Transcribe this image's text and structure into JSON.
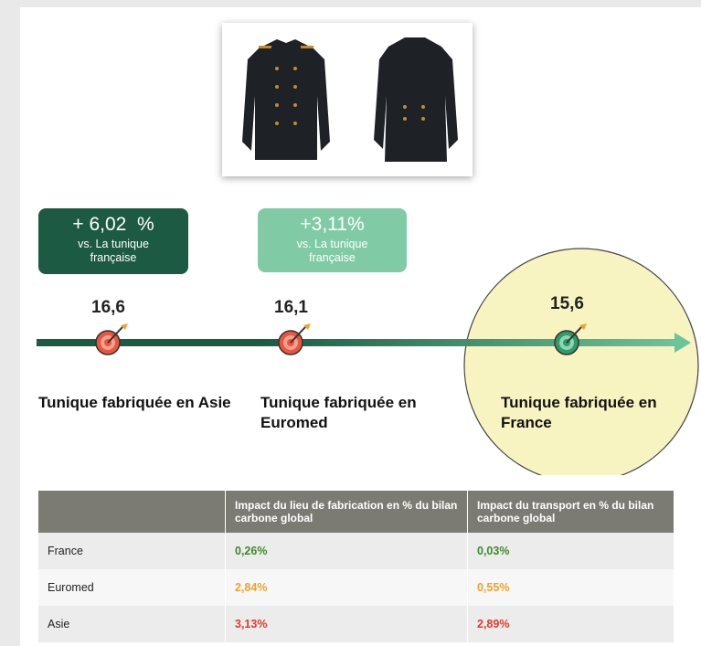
{
  "badges": [
    {
      "value": "+ 6,02  %",
      "text": "vs. La tunique française"
    },
    {
      "value": "+3,11%",
      "text": "vs. La tunique française"
    }
  ],
  "timeline": [
    {
      "value": "16,6",
      "label": "Tunique fabriquée en Asie"
    },
    {
      "value": "16,1",
      "label": "Tunique fabriquée en Euromed"
    },
    {
      "value": "15,6",
      "label": "Tunique fabriquée en France"
    }
  ],
  "table": {
    "headers": [
      "Impact du lieu de fabrication en % du bilan carbone global",
      "Impact du transport en % du bilan carbone global"
    ],
    "rows": [
      [
        "France",
        "0,26%",
        "0,03%"
      ],
      [
        "Euromed",
        "2,84%",
        "0,55%"
      ],
      [
        "Asie",
        "3,13%",
        "2,89%"
      ]
    ]
  }
}
